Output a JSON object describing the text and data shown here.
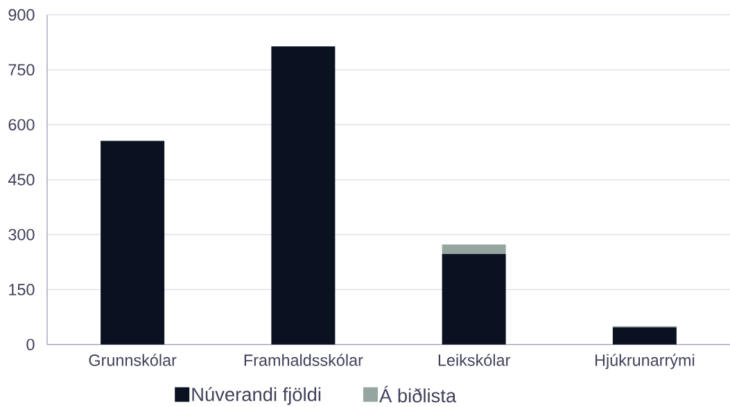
{
  "chart_data": {
    "type": "bar",
    "stacked": true,
    "categories": [
      "Grunnskólar",
      "Framhaldsskólar",
      "Leikskólar",
      "Hjúkrunarrými"
    ],
    "series": [
      {
        "name": "Núverandi fjöldi",
        "color": "#0a1120",
        "values": [
          556,
          814,
          247,
          47
        ]
      },
      {
        "name": "Á biðlista",
        "color": "#95a5a0",
        "values": [
          null,
          null,
          26,
          3
        ]
      }
    ],
    "ylim": [
      0,
      900
    ],
    "yticks": [
      0,
      150,
      300,
      450,
      600,
      750,
      900
    ],
    "grid": "y",
    "legend": "bottom"
  }
}
